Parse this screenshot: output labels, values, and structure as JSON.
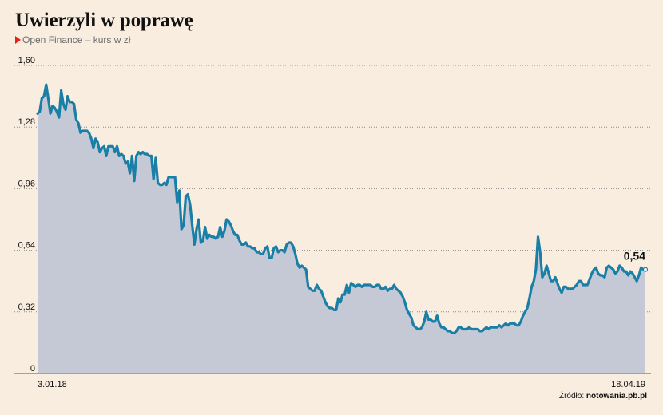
{
  "header": {
    "title": "Uwierzyli w poprawę",
    "subtitle": "Open Finance – kurs w zł"
  },
  "source": {
    "prefix": "Źródło: ",
    "site": "notowania.pb.pl"
  },
  "colors": {
    "line": "#1a7fa7",
    "area": "#c5c9d6",
    "grid": "#8a8a8a",
    "marker": "#e2231a"
  },
  "chart_data": {
    "type": "area",
    "ylim": [
      0,
      1.6
    ],
    "yticks": [
      0,
      0.32,
      0.64,
      0.96,
      1.28,
      1.6
    ],
    "ytick_labels": [
      "0",
      "0,32",
      "0,64",
      "0,96",
      "1,28",
      "1,60"
    ],
    "x_start_label": "3.01.18",
    "x_end_label": "18.04.19",
    "last_value_label": "0,54",
    "grid": "horizontal dotted",
    "values": [
      1.35,
      1.36,
      1.43,
      1.44,
      1.5,
      1.43,
      1.35,
      1.39,
      1.38,
      1.36,
      1.33,
      1.47,
      1.4,
      1.37,
      1.44,
      1.41,
      1.41,
      1.4,
      1.32,
      1.3,
      1.25,
      1.26,
      1.26,
      1.26,
      1.25,
      1.22,
      1.17,
      1.22,
      1.2,
      1.15,
      1.17,
      1.18,
      1.13,
      1.18,
      1.18,
      1.18,
      1.15,
      1.18,
      1.13,
      1.14,
      1.13,
      1.09,
      1.1,
      1.04,
      1.13,
      1.0,
      1.13,
      1.15,
      1.14,
      1.15,
      1.14,
      1.14,
      1.13,
      1.13,
      1.01,
      1.12,
      0.99,
      0.98,
      0.98,
      0.99,
      0.98,
      1.02,
      1.02,
      1.02,
      1.02,
      0.89,
      0.95,
      0.75,
      0.77,
      0.92,
      0.93,
      0.88,
      0.77,
      0.67,
      0.75,
      0.8,
      0.68,
      0.69,
      0.76,
      0.7,
      0.72,
      0.71,
      0.71,
      0.7,
      0.71,
      0.76,
      0.71,
      0.74,
      0.8,
      0.79,
      0.77,
      0.74,
      0.72,
      0.72,
      0.69,
      0.67,
      0.67,
      0.68,
      0.66,
      0.66,
      0.65,
      0.65,
      0.63,
      0.63,
      0.62,
      0.62,
      0.65,
      0.66,
      0.6,
      0.6,
      0.65,
      0.66,
      0.63,
      0.64,
      0.64,
      0.63,
      0.67,
      0.68,
      0.68,
      0.66,
      0.62,
      0.57,
      0.55,
      0.56,
      0.55,
      0.54,
      0.45,
      0.44,
      0.43,
      0.43,
      0.46,
      0.44,
      0.43,
      0.4,
      0.37,
      0.35,
      0.34,
      0.34,
      0.33,
      0.33,
      0.39,
      0.37,
      0.41,
      0.41,
      0.46,
      0.42,
      0.47,
      0.46,
      0.45,
      0.46,
      0.46,
      0.45,
      0.46,
      0.46,
      0.46,
      0.46,
      0.45,
      0.45,
      0.46,
      0.46,
      0.44,
      0.44,
      0.45,
      0.43,
      0.44,
      0.44,
      0.46,
      0.44,
      0.43,
      0.42,
      0.4,
      0.37,
      0.33,
      0.31,
      0.29,
      0.25,
      0.24,
      0.23,
      0.23,
      0.24,
      0.27,
      0.32,
      0.28,
      0.28,
      0.27,
      0.27,
      0.3,
      0.26,
      0.24,
      0.24,
      0.23,
      0.22,
      0.22,
      0.21,
      0.21,
      0.22,
      0.24,
      0.24,
      0.23,
      0.23,
      0.23,
      0.24,
      0.23,
      0.23,
      0.23,
      0.23,
      0.22,
      0.22,
      0.23,
      0.24,
      0.23,
      0.24,
      0.24,
      0.24,
      0.24,
      0.25,
      0.24,
      0.25,
      0.26,
      0.25,
      0.26,
      0.26,
      0.26,
      0.25,
      0.25,
      0.27,
      0.3,
      0.32,
      0.34,
      0.39,
      0.45,
      0.48,
      0.54,
      0.71,
      0.63,
      0.5,
      0.52,
      0.56,
      0.52,
      0.48,
      0.48,
      0.5,
      0.47,
      0.44,
      0.42,
      0.45,
      0.45,
      0.44,
      0.44,
      0.44,
      0.45,
      0.46,
      0.48,
      0.48,
      0.46,
      0.46,
      0.46,
      0.49,
      0.52,
      0.54,
      0.55,
      0.52,
      0.51,
      0.51,
      0.5,
      0.55,
      0.56,
      0.55,
      0.54,
      0.52,
      0.53,
      0.56,
      0.55,
      0.53,
      0.53,
      0.51,
      0.53,
      0.52,
      0.5,
      0.48,
      0.51,
      0.55,
      0.54,
      0.54
    ]
  }
}
